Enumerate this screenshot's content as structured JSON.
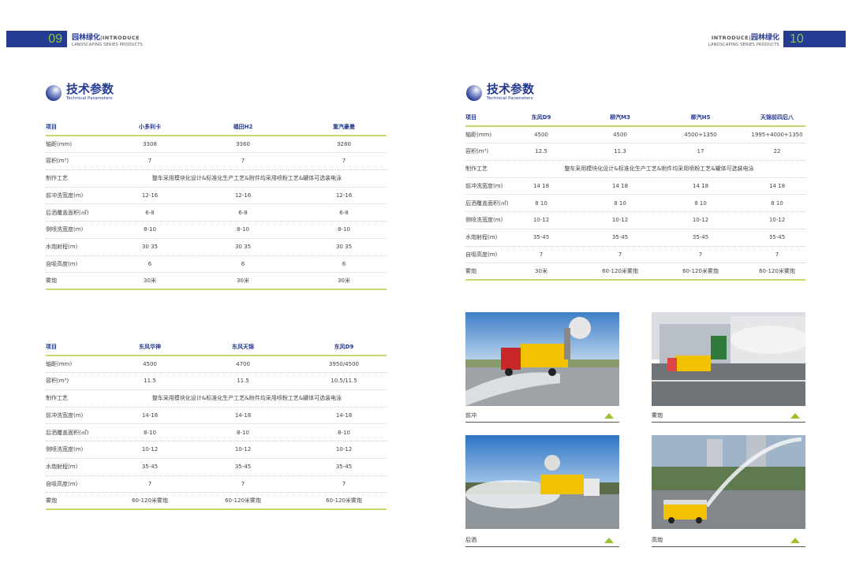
{
  "left_header": {
    "page_number": "09",
    "title_cn": "园林绿化",
    "intro": "|INTRODUCE",
    "subtitle": "LANDSCAPING SERIES PRODUCTS"
  },
  "right_header": {
    "page_number": "10",
    "title_cn": "园林绿化",
    "intro": "INTRODUCE|",
    "subtitle": "LANDSCAPING SERIES PRODUCTS"
  },
  "left_section": {
    "title_cn": "技术参数",
    "title_en": "Technical Parameters"
  },
  "right_section": {
    "title_cn": "技术参数",
    "title_en": "Technical Parameters"
  },
  "colors": {
    "brand_blue": "#253a91",
    "accent_green": "#8cc63f",
    "line_green": "#c5da6c"
  },
  "tables": [
    {
      "headers": [
        "项目",
        "小多利卡",
        "福田H2",
        "重汽豪曼"
      ],
      "rows": [
        [
          "轴距(mm)",
          "3308",
          "3360",
          "3280"
        ],
        [
          "容积(m³)",
          "7",
          "7",
          "7"
        ],
        [
          "制作工艺",
          "整车采用模块化设计&标准化生产工艺&附件均采用喷粉工艺&罐体可选装电泳"
        ],
        [
          "前冲洗宽度(m)",
          "12-16",
          "12-16",
          "12-16"
        ],
        [
          "后洒覆盖面积(㎡)",
          "6-8",
          "6-8",
          "6-8"
        ],
        [
          "侧喷洗宽度(m)",
          "8-10",
          "8-10",
          "8-10"
        ],
        [
          "水炮射程(m)",
          "30 35",
          "30 35",
          "30 35"
        ],
        [
          "自吸高度(m)",
          "6",
          "6",
          "6"
        ],
        [
          "雾炮",
          "30米",
          "30米",
          "30米"
        ]
      ]
    },
    {
      "headers": [
        "项目",
        "东风华神",
        "东风天锦",
        "东风D9"
      ],
      "rows": [
        [
          "轴距(mm)",
          "4500",
          "4700",
          "3950/4500"
        ],
        [
          "容积(m³)",
          "11.5",
          "11.5",
          "10.5/11.5"
        ],
        [
          "制作工艺",
          "整车采用模块化设计&标准化生产工艺&附件均采用喷粉工艺&罐体可选装电泳"
        ],
        [
          "前冲洗宽度(m)",
          "14-18",
          "14-18",
          "14-18"
        ],
        [
          "后洒覆盖面积(㎡)",
          "8-10",
          "8-10",
          "8-10"
        ],
        [
          "侧喷洗宽度(m)",
          "10-12",
          "10-12",
          "10-12"
        ],
        [
          "水炮射程(m)",
          "35-45",
          "35-45",
          "35-45"
        ],
        [
          "自吸高度(m)",
          "7",
          "7",
          "7"
        ],
        [
          "雾炮",
          "60-120米雾炮",
          "60-120米雾炮",
          "60-120米雾炮"
        ]
      ]
    },
    {
      "headers": [
        "项目",
        "东风D9",
        "柳汽M3",
        "柳汽H5",
        "天锦前四后八"
      ],
      "rows": [
        [
          "轴距(mm)",
          "4500",
          "4500",
          "4500+1350",
          "1995+4000+1350"
        ],
        [
          "容积(m³)",
          "12.5",
          "11.3",
          "17",
          "22"
        ],
        [
          "制作工艺",
          "整车采用模块化设计&标准化生产工艺&附件均采用喷粉工艺&罐体可选装电泳"
        ],
        [
          "前冲洗宽度(m)",
          "14 18",
          "14 18",
          "14 18",
          "14 18"
        ],
        [
          "后洒覆盖面积(㎡)",
          "8 10",
          "8 10",
          "8 10",
          "8 10"
        ],
        [
          "侧喷洗宽度(m)",
          "10-12",
          "10-12",
          "10-12",
          "10-12"
        ],
        [
          "水炮射程(m)",
          "35-45",
          "35-45",
          "35-45",
          "35-45"
        ],
        [
          "自吸高度(m)",
          "7",
          "7",
          "7",
          "7"
        ],
        [
          "雾炮",
          "30米",
          "60-120米雾炮",
          "60-120米雾炮",
          "60-120米雾炮"
        ]
      ]
    }
  ],
  "photos": [
    {
      "caption": "前冲",
      "icon": "triangle-up-icon"
    },
    {
      "caption": "雾炮",
      "icon": "triangle-up-icon"
    },
    {
      "caption": "后洒",
      "icon": "triangle-up-icon"
    },
    {
      "caption": "高炮",
      "icon": "triangle-up-icon"
    }
  ]
}
